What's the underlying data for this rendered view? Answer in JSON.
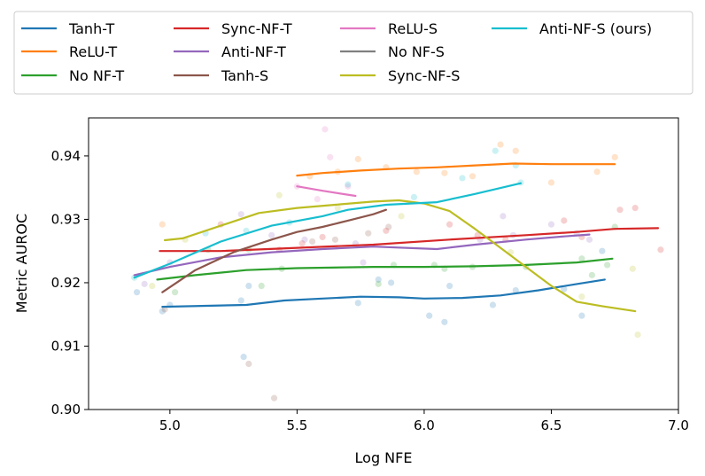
{
  "chart_data": {
    "type": "line",
    "xlabel": "Log NFE",
    "ylabel": "Metric AUROC",
    "xlim": [
      4.68,
      7.0
    ],
    "ylim": [
      0.9,
      0.946
    ],
    "xticks": [
      5.0,
      5.5,
      6.0,
      6.5,
      7.0
    ],
    "xtick_labels": [
      "5.0",
      "5.5",
      "6.0",
      "6.5",
      "7.0"
    ],
    "yticks": [
      0.9,
      0.91,
      0.92,
      0.93,
      0.94
    ],
    "ytick_labels": [
      "0.90",
      "0.91",
      "0.92",
      "0.93",
      "0.94"
    ],
    "grid": false,
    "legend_position": "top, above plot",
    "series": [
      {
        "name": "Tanh-T",
        "color": "#1f77b4",
        "line": [
          [
            4.97,
            0.9162
          ],
          [
            5.3,
            0.9165
          ],
          [
            5.45,
            0.9172
          ],
          [
            5.6,
            0.9175
          ],
          [
            5.75,
            0.9178
          ],
          [
            5.9,
            0.9177
          ],
          [
            6.0,
            0.9175
          ],
          [
            6.15,
            0.9176
          ],
          [
            6.3,
            0.918
          ],
          [
            6.45,
            0.9188
          ],
          [
            6.6,
            0.9198
          ],
          [
            6.71,
            0.9205
          ]
        ],
        "points": [
          [
            4.87,
            0.9185
          ],
          [
            4.97,
            0.9155
          ],
          [
            5.0,
            0.9165
          ],
          [
            5.28,
            0.9172
          ],
          [
            5.29,
            0.9083
          ],
          [
            5.31,
            0.9195
          ],
          [
            5.74,
            0.9168
          ],
          [
            5.82,
            0.9205
          ],
          [
            5.87,
            0.92
          ],
          [
            6.02,
            0.9148
          ],
          [
            6.08,
            0.9138
          ],
          [
            6.1,
            0.9195
          ],
          [
            6.27,
            0.9165
          ],
          [
            6.36,
            0.9188
          ],
          [
            6.55,
            0.919
          ],
          [
            6.62,
            0.9148
          ],
          [
            6.7,
            0.925
          ]
        ]
      },
      {
        "name": "ReLU-T",
        "color": "#ff7f0e",
        "line": [
          [
            5.5,
            0.9369
          ],
          [
            5.6,
            0.9373
          ],
          [
            5.75,
            0.9377
          ],
          [
            5.9,
            0.938
          ],
          [
            6.05,
            0.9382
          ],
          [
            6.2,
            0.9385
          ],
          [
            6.35,
            0.9388
          ],
          [
            6.5,
            0.9387
          ],
          [
            6.6,
            0.9387
          ],
          [
            6.75,
            0.9387
          ]
        ],
        "points": [
          [
            4.97,
            0.9292
          ],
          [
            5.55,
            0.9368
          ],
          [
            5.66,
            0.9375
          ],
          [
            5.74,
            0.9395
          ],
          [
            5.85,
            0.9382
          ],
          [
            5.97,
            0.9375
          ],
          [
            6.08,
            0.9373
          ],
          [
            6.19,
            0.9368
          ],
          [
            6.3,
            0.9418
          ],
          [
            6.36,
            0.9408
          ],
          [
            6.5,
            0.9358
          ],
          [
            6.68,
            0.9375
          ],
          [
            6.75,
            0.9398
          ]
        ]
      },
      {
        "name": "No NF-T",
        "color": "#2ca02c",
        "line": [
          [
            4.95,
            0.9205
          ],
          [
            5.1,
            0.9212
          ],
          [
            5.3,
            0.922
          ],
          [
            5.5,
            0.9223
          ],
          [
            5.8,
            0.9225
          ],
          [
            6.0,
            0.9225
          ],
          [
            6.2,
            0.9226
          ],
          [
            6.4,
            0.9228
          ],
          [
            6.6,
            0.9232
          ],
          [
            6.74,
            0.9238
          ]
        ],
        "points": [
          [
            5.02,
            0.9185
          ],
          [
            5.15,
            0.9252
          ],
          [
            5.31,
            0.9252
          ],
          [
            5.36,
            0.9195
          ],
          [
            5.44,
            0.9222
          ],
          [
            5.82,
            0.9198
          ],
          [
            5.88,
            0.9228
          ],
          [
            6.04,
            0.9228
          ],
          [
            6.08,
            0.9222
          ],
          [
            6.19,
            0.9225
          ],
          [
            6.4,
            0.9225
          ],
          [
            6.62,
            0.9238
          ],
          [
            6.66,
            0.9212
          ],
          [
            6.72,
            0.9228
          ],
          [
            6.75,
            0.9288
          ]
        ]
      },
      {
        "name": "Sync-NF-T",
        "color": "#d62728",
        "line": [
          [
            4.96,
            0.925
          ],
          [
            5.2,
            0.925
          ],
          [
            5.5,
            0.9255
          ],
          [
            5.8,
            0.926
          ],
          [
            6.1,
            0.9268
          ],
          [
            6.4,
            0.9275
          ],
          [
            6.6,
            0.928
          ],
          [
            6.75,
            0.9285
          ],
          [
            6.92,
            0.9286
          ]
        ],
        "points": [
          [
            5.2,
            0.9292
          ],
          [
            5.43,
            0.9252
          ],
          [
            5.52,
            0.9262
          ],
          [
            5.6,
            0.9272
          ],
          [
            5.85,
            0.9282
          ],
          [
            6.1,
            0.9292
          ],
          [
            6.21,
            0.9275
          ],
          [
            6.32,
            0.9268
          ],
          [
            6.55,
            0.9298
          ],
          [
            6.62,
            0.9272
          ],
          [
            6.77,
            0.9315
          ],
          [
            6.83,
            0.9318
          ],
          [
            6.93,
            0.9252
          ]
        ]
      },
      {
        "name": "Anti-NF-T",
        "color": "#9467bd",
        "line": [
          [
            4.86,
            0.9212
          ],
          [
            5.0,
            0.9225
          ],
          [
            5.2,
            0.924
          ],
          [
            5.4,
            0.9248
          ],
          [
            5.6,
            0.9253
          ],
          [
            5.8,
            0.9257
          ],
          [
            6.05,
            0.9253
          ],
          [
            6.2,
            0.926
          ],
          [
            6.4,
            0.9268
          ],
          [
            6.55,
            0.9273
          ],
          [
            6.65,
            0.9276
          ]
        ],
        "points": [
          [
            4.9,
            0.9198
          ],
          [
            5.0,
            0.9232
          ],
          [
            5.28,
            0.9308
          ],
          [
            5.4,
            0.9275
          ],
          [
            5.53,
            0.9268
          ],
          [
            5.73,
            0.9262
          ],
          [
            5.76,
            0.9232
          ],
          [
            6.22,
            0.9268
          ],
          [
            6.31,
            0.9305
          ],
          [
            6.35,
            0.9275
          ],
          [
            6.5,
            0.9292
          ],
          [
            6.6,
            0.9278
          ],
          [
            6.65,
            0.9268
          ]
        ]
      },
      {
        "name": "Tanh-S",
        "color": "#8c564b",
        "line": [
          [
            4.97,
            0.9185
          ],
          [
            5.1,
            0.922
          ],
          [
            5.25,
            0.9248
          ],
          [
            5.4,
            0.9268
          ],
          [
            5.5,
            0.928
          ],
          [
            5.6,
            0.9288
          ],
          [
            5.7,
            0.9298
          ],
          [
            5.8,
            0.9308
          ],
          [
            5.85,
            0.9315
          ]
        ],
        "points": [
          [
            4.98,
            0.9158
          ],
          [
            5.31,
            0.9072
          ],
          [
            5.41,
            0.9018
          ],
          [
            5.56,
            0.9265
          ],
          [
            5.65,
            0.9268
          ],
          [
            5.78,
            0.9278
          ],
          [
            5.86,
            0.9288
          ]
        ]
      },
      {
        "name": "ReLU-S",
        "color": "#e377c2",
        "line": [
          [
            5.5,
            0.9352
          ],
          [
            5.6,
            0.9345
          ],
          [
            5.73,
            0.9337
          ]
        ],
        "points": [
          [
            5.5,
            0.9352
          ],
          [
            5.58,
            0.9332
          ],
          [
            5.61,
            0.9442
          ],
          [
            5.63,
            0.9398
          ],
          [
            5.7,
            0.9352
          ]
        ]
      },
      {
        "name": "No NF-S",
        "color": "#7f7f7f",
        "line": [],
        "points": []
      },
      {
        "name": "Sync-NF-S",
        "color": "#bcbd22",
        "line": [
          [
            4.98,
            0.9267
          ],
          [
            5.05,
            0.927
          ],
          [
            5.2,
            0.929
          ],
          [
            5.35,
            0.931
          ],
          [
            5.5,
            0.9318
          ],
          [
            5.65,
            0.9323
          ],
          [
            5.8,
            0.9328
          ],
          [
            5.9,
            0.933
          ],
          [
            6.0,
            0.9325
          ],
          [
            6.1,
            0.9313
          ],
          [
            6.2,
            0.9285
          ],
          [
            6.3,
            0.9255
          ],
          [
            6.4,
            0.9225
          ],
          [
            6.5,
            0.9195
          ],
          [
            6.6,
            0.917
          ],
          [
            6.7,
            0.9163
          ],
          [
            6.83,
            0.9155
          ]
        ],
        "points": [
          [
            4.93,
            0.9195
          ],
          [
            5.06,
            0.9268
          ],
          [
            5.43,
            0.9338
          ],
          [
            5.66,
            0.9318
          ],
          [
            5.91,
            0.9305
          ],
          [
            6.34,
            0.9248
          ],
          [
            6.62,
            0.9178
          ],
          [
            6.82,
            0.9222
          ],
          [
            6.84,
            0.9118
          ]
        ]
      },
      {
        "name": "Anti-NF-S (ours)",
        "color": "#17becf",
        "line": [
          [
            4.86,
            0.9208
          ],
          [
            5.0,
            0.923
          ],
          [
            5.2,
            0.9265
          ],
          [
            5.4,
            0.929
          ],
          [
            5.6,
            0.9305
          ],
          [
            5.7,
            0.9315
          ],
          [
            5.85,
            0.9323
          ],
          [
            6.05,
            0.9327
          ],
          [
            6.2,
            0.934
          ],
          [
            6.38,
            0.9357
          ]
        ],
        "points": [
          [
            4.86,
            0.9208
          ],
          [
            5.14,
            0.9278
          ],
          [
            5.3,
            0.9282
          ],
          [
            5.47,
            0.9295
          ],
          [
            5.7,
            0.9355
          ],
          [
            5.96,
            0.9335
          ],
          [
            6.15,
            0.9365
          ],
          [
            6.28,
            0.9408
          ],
          [
            6.36,
            0.9385
          ],
          [
            6.38,
            0.9358
          ]
        ]
      }
    ]
  }
}
